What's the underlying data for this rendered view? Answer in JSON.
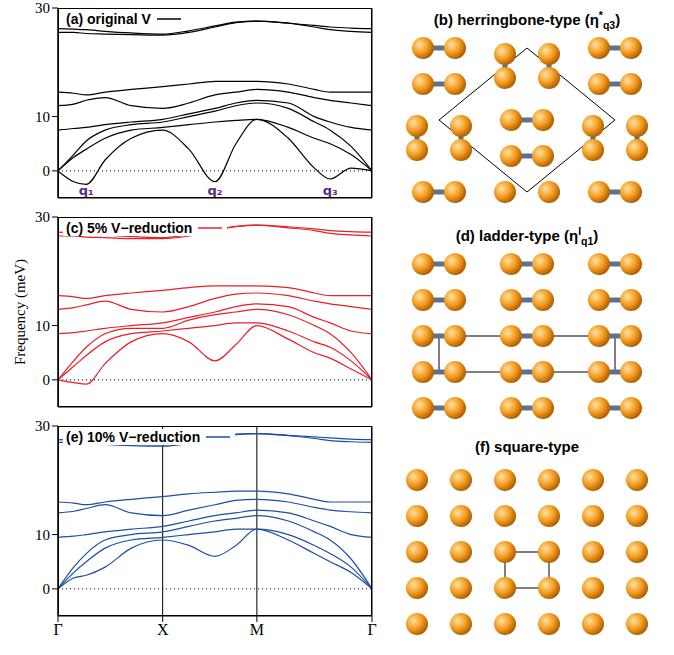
{
  "chart_data": [
    {
      "type": "line",
      "title": "(a) original V",
      "color": "#000000",
      "y_label": null,
      "tick_labels": "y",
      "grid": "x",
      "x": [
        0,
        0.15,
        0.27,
        0.45,
        0.7,
        1.0,
        1.25,
        1.5,
        1.7,
        1.9,
        2.2,
        2.45,
        2.6,
        2.8,
        3.0
      ],
      "xlim": [
        0,
        3
      ],
      "xticks": [
        {
          "value": 0,
          "label": "Γ"
        },
        {
          "value": 1,
          "label": "X"
        },
        {
          "value": 1.9,
          "label": "M"
        },
        {
          "value": 3,
          "label": "Γ"
        }
      ],
      "ylim": [
        -5,
        30
      ],
      "yticks": [
        0,
        10,
        30
      ],
      "reference_lines": [
        0
      ],
      "annotations": [
        {
          "text": "q₁",
          "x": 0.27,
          "y": -3.8,
          "color": "#5b2a86"
        },
        {
          "text": "q₂",
          "x": 1.5,
          "y": -3.8,
          "color": "#5b2a86"
        },
        {
          "text": "q₃",
          "x": 2.6,
          "y": -3.8,
          "color": "#5b2a86"
        }
      ],
      "series": [
        {
          "values": [
            0,
            -2,
            -2.5,
            2,
            6,
            7.5,
            4,
            -2,
            5,
            9.5,
            6,
            0.5,
            -1.5,
            0.5,
            0
          ]
        },
        {
          "values": [
            0,
            2.5,
            4,
            6,
            7.5,
            8,
            8.5,
            9,
            9.3,
            9.5,
            8,
            6,
            5,
            3,
            0
          ]
        },
        {
          "values": [
            0,
            3,
            5.5,
            7.5,
            8.5,
            9,
            10,
            11,
            12,
            12.5,
            11.5,
            9,
            7.5,
            4.5,
            0
          ]
        },
        {
          "values": [
            7.5,
            7.8,
            8,
            8.5,
            9,
            9.5,
            10.5,
            11.5,
            12.5,
            13,
            12.5,
            10,
            9,
            8,
            7.5
          ]
        },
        {
          "values": [
            12,
            12.3,
            13,
            13.5,
            12,
            11.5,
            12.5,
            14,
            14.5,
            15,
            14.5,
            13.5,
            13,
            12.5,
            12
          ]
        },
        {
          "values": [
            14.5,
            14.3,
            14,
            14.5,
            15,
            15.5,
            16,
            16.5,
            16.5,
            16.5,
            16,
            15,
            14.5,
            14.5,
            14.5
          ]
        },
        {
          "values": [
            25.5,
            25.5,
            25.3,
            25.2,
            25.1,
            25,
            25.5,
            26.5,
            27.3,
            27.6,
            27.2,
            26.5,
            26,
            25.7,
            25.5
          ]
        },
        {
          "values": [
            26.2,
            26.1,
            26,
            25.7,
            25.4,
            25.2,
            25.8,
            26.7,
            27.4,
            27.6,
            27.2,
            26.8,
            26.5,
            26.3,
            26.2
          ]
        }
      ]
    },
    {
      "type": "line",
      "title": "(c) 5% V−reduction",
      "color": "#e8202a",
      "y_label": "Frequency (meV)",
      "tick_labels": "y",
      "grid": "x",
      "x": [
        0,
        0.15,
        0.27,
        0.45,
        0.7,
        1.0,
        1.25,
        1.5,
        1.7,
        1.9,
        2.2,
        2.45,
        2.6,
        2.8,
        3.0
      ],
      "xlim": [
        0,
        3
      ],
      "xticks": [
        {
          "value": 0,
          "label": "Γ"
        },
        {
          "value": 1,
          "label": "X"
        },
        {
          "value": 1.9,
          "label": "M"
        },
        {
          "value": 3,
          "label": "Γ"
        }
      ],
      "ylim": [
        -5,
        30
      ],
      "yticks": [
        0,
        10,
        30
      ],
      "reference_lines": [
        0
      ],
      "annotations": [],
      "series": [
        {
          "values": [
            0,
            -0.5,
            -0.8,
            3,
            7,
            8.5,
            7,
            3.5,
            6.5,
            10,
            7.5,
            5,
            4,
            2,
            0
          ]
        },
        {
          "values": [
            0,
            2.5,
            4.5,
            7,
            8.5,
            9,
            9.5,
            10,
            10.5,
            10.5,
            9,
            7,
            6,
            3.5,
            0
          ]
        },
        {
          "values": [
            0,
            3.5,
            6,
            8.5,
            9.5,
            9.5,
            11,
            12,
            12.5,
            13,
            12,
            10,
            8.5,
            5,
            0
          ]
        },
        {
          "values": [
            8.5,
            8.7,
            9,
            9.5,
            10,
            10.5,
            11.5,
            12.5,
            13.5,
            14,
            13.5,
            11.5,
            10.5,
            9,
            8.5
          ]
        },
        {
          "values": [
            13,
            13.3,
            13.8,
            14.5,
            13,
            12.5,
            13.5,
            15,
            15.8,
            16,
            15.5,
            14.5,
            14,
            13.5,
            13
          ]
        },
        {
          "values": [
            15.5,
            15.3,
            15,
            15.5,
            16,
            16.5,
            17,
            17.3,
            17.3,
            17.3,
            17,
            16,
            15.5,
            15.5,
            15.5
          ]
        },
        {
          "values": [
            26.5,
            26.5,
            26.3,
            26.2,
            26,
            26,
            26.5,
            27.5,
            28.2,
            28.5,
            28,
            27.5,
            27,
            26.7,
            26.5
          ]
        },
        {
          "values": [
            27.2,
            27.1,
            27,
            26.7,
            26.4,
            26.2,
            26.8,
            27.7,
            28.3,
            28.5,
            28.2,
            27.8,
            27.5,
            27.3,
            27.2
          ]
        }
      ]
    },
    {
      "type": "line",
      "title": "(e) 10% V−reduction",
      "color": "#1f4ea0",
      "y_label": null,
      "grid": "x",
      "x": [
        0,
        0.15,
        0.27,
        0.45,
        0.7,
        1.0,
        1.25,
        1.5,
        1.7,
        1.9,
        2.2,
        2.45,
        2.6,
        2.8,
        3.0
      ],
      "xlim": [
        0,
        3
      ],
      "xticks": [
        {
          "value": 0,
          "label": "Γ"
        },
        {
          "value": 1,
          "label": "X"
        },
        {
          "value": 1.9,
          "label": "M"
        },
        {
          "value": 3,
          "label": "Γ"
        }
      ],
      "ylim": [
        -5,
        30
      ],
      "yticks": [
        0,
        10,
        30
      ],
      "reference_lines": [
        0
      ],
      "annotations": [],
      "series": [
        {
          "values": [
            0,
            2,
            2.5,
            4,
            7.5,
            9,
            8,
            6,
            8,
            11,
            9,
            6.5,
            5,
            3,
            0
          ]
        },
        {
          "values": [
            0,
            3,
            5,
            7.5,
            9,
            9.5,
            10,
            10.5,
            11,
            11,
            10,
            8,
            6.5,
            4,
            0
          ]
        },
        {
          "values": [
            0,
            4,
            6.5,
            9,
            10,
            10.5,
            11.5,
            12.5,
            13,
            13.5,
            12.5,
            10.5,
            9,
            5.5,
            0
          ]
        },
        {
          "values": [
            9.5,
            9.7,
            10,
            10.5,
            11,
            11.5,
            12.5,
            13.5,
            14,
            14.5,
            14,
            12.5,
            11.5,
            10,
            9.5
          ]
        },
        {
          "values": [
            14,
            14.3,
            14.8,
            15.5,
            14,
            13.5,
            14.5,
            15.5,
            16.3,
            16.5,
            16,
            15,
            14.5,
            14.2,
            14
          ]
        },
        {
          "values": [
            16,
            15.8,
            15.5,
            16,
            16.5,
            17,
            17.5,
            17.8,
            18,
            18,
            17.5,
            16.5,
            16,
            16,
            16
          ]
        },
        {
          "values": [
            27,
            27,
            26.8,
            26.6,
            26.4,
            26.3,
            26.8,
            27.7,
            28.4,
            28.6,
            28.2,
            27.7,
            27.3,
            27.1,
            27
          ]
        },
        {
          "values": [
            27.5,
            27.4,
            27.3,
            27,
            26.7,
            26.5,
            27,
            27.9,
            28.5,
            28.6,
            28.3,
            28,
            27.8,
            27.6,
            27.5
          ]
        }
      ]
    }
  ],
  "diagrams": [
    {
      "type": "herringbone",
      "title": [
        {
          "text": "(b) herringbone-type (η"
        },
        {
          "text": "*",
          "style": "sup"
        },
        {
          "text": "q3",
          "style": "sub"
        },
        {
          "text": ")"
        }
      ]
    },
    {
      "type": "ladder",
      "title": [
        {
          "text": "(d) ladder-type (η"
        },
        {
          "text": "I",
          "style": "sup"
        },
        {
          "text": "q1",
          "style": "sub"
        },
        {
          "text": ")"
        }
      ]
    },
    {
      "type": "square",
      "title": [
        {
          "text": "(f) square-type"
        }
      ]
    }
  ]
}
